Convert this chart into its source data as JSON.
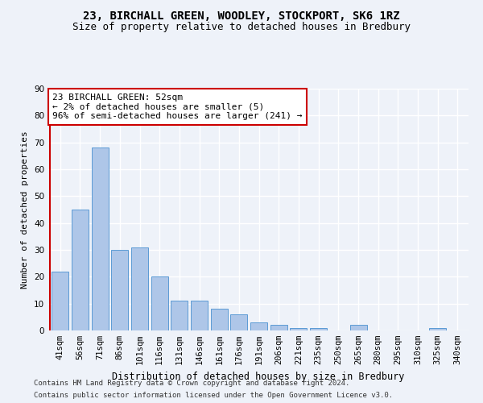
{
  "title1": "23, BIRCHALL GREEN, WOODLEY, STOCKPORT, SK6 1RZ",
  "title2": "Size of property relative to detached houses in Bredbury",
  "xlabel": "Distribution of detached houses by size in Bredbury",
  "ylabel": "Number of detached properties",
  "categories": [
    "41sqm",
    "56sqm",
    "71sqm",
    "86sqm",
    "101sqm",
    "116sqm",
    "131sqm",
    "146sqm",
    "161sqm",
    "176sqm",
    "191sqm",
    "206sqm",
    "221sqm",
    "235sqm",
    "250sqm",
    "265sqm",
    "280sqm",
    "295sqm",
    "310sqm",
    "325sqm",
    "340sqm"
  ],
  "values": [
    22,
    45,
    68,
    30,
    31,
    20,
    11,
    11,
    8,
    6,
    3,
    2,
    1,
    1,
    0,
    2,
    0,
    0,
    0,
    1,
    0
  ],
  "bar_color": "#aec6e8",
  "bar_edge_color": "#5b9bd5",
  "marker_line_color": "#cc0000",
  "ylim": [
    0,
    90
  ],
  "yticks": [
    0,
    10,
    20,
    30,
    40,
    50,
    60,
    70,
    80,
    90
  ],
  "annotation_text": "23 BIRCHALL GREEN: 52sqm\n← 2% of detached houses are smaller (5)\n96% of semi-detached houses are larger (241) →",
  "annotation_box_color": "#ffffff",
  "annotation_box_edge": "#cc0000",
  "footer1": "Contains HM Land Registry data © Crown copyright and database right 2024.",
  "footer2": "Contains public sector information licensed under the Open Government Licence v3.0.",
  "background_color": "#eef2f9",
  "grid_color": "#ffffff",
  "title1_fontsize": 10,
  "title2_fontsize": 9,
  "xlabel_fontsize": 8.5,
  "ylabel_fontsize": 8,
  "tick_fontsize": 7.5,
  "annotation_fontsize": 8,
  "footer_fontsize": 6.5
}
